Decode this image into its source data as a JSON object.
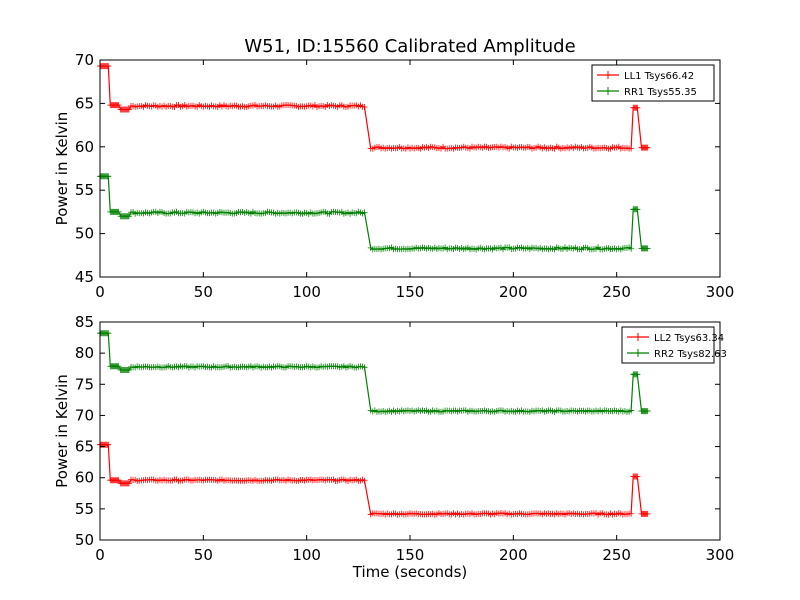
{
  "figure_title": "W51, ID:15560 Calibrated Amplitude",
  "chart_data": [
    {
      "type": "line",
      "title": "W51, ID:15560 Calibrated Amplitude",
      "xlabel": "",
      "ylabel": "Power in Kelvin",
      "xlim": [
        0,
        300
      ],
      "ylim": [
        45,
        70
      ],
      "xticks": [
        "0",
        "50",
        "100",
        "150",
        "200",
        "250",
        "300"
      ],
      "yticks": [
        "45",
        "50",
        "55",
        "60",
        "65",
        "70"
      ],
      "grid": false,
      "legend_position": "top-right",
      "series": [
        {
          "name": "LL1 Tsys66.42",
          "color": "#ff0000",
          "segments": [
            {
              "x_start": 0,
              "x_end": 4,
              "value": 69.3
            },
            {
              "x_start": 5,
              "x_end": 9,
              "value": 64.8
            },
            {
              "x_start": 10,
              "x_end": 14,
              "value": 64.3
            },
            {
              "x_start": 15,
              "x_end": 128,
              "value": 64.7
            },
            {
              "x_start": 131,
              "x_end": 257,
              "value": 59.9
            },
            {
              "x_start": 258,
              "x_end": 260,
              "value": 64.5
            },
            {
              "x_start": 262,
              "x_end": 265,
              "value": 59.9
            }
          ]
        },
        {
          "name": "RR1 Tsys55.35",
          "color": "#008000",
          "segments": [
            {
              "x_start": 0,
              "x_end": 4,
              "value": 56.6
            },
            {
              "x_start": 5,
              "x_end": 9,
              "value": 52.5
            },
            {
              "x_start": 10,
              "x_end": 14,
              "value": 52.0
            },
            {
              "x_start": 15,
              "x_end": 128,
              "value": 52.4
            },
            {
              "x_start": 131,
              "x_end": 257,
              "value": 48.3
            },
            {
              "x_start": 258,
              "x_end": 260,
              "value": 52.8
            },
            {
              "x_start": 262,
              "x_end": 265,
              "value": 48.3
            }
          ]
        }
      ]
    },
    {
      "type": "line",
      "title": "",
      "xlabel": "Time (seconds)",
      "ylabel": "Power in Kelvin",
      "xlim": [
        0,
        300
      ],
      "ylim": [
        50,
        85
      ],
      "xticks": [
        "0",
        "50",
        "100",
        "150",
        "200",
        "250",
        "300"
      ],
      "yticks": [
        "50",
        "55",
        "60",
        "65",
        "70",
        "75",
        "80",
        "85"
      ],
      "grid": false,
      "legend_position": "top-right",
      "series": [
        {
          "name": "LL2 Tsys63.34",
          "color": "#ff0000",
          "segments": [
            {
              "x_start": 0,
              "x_end": 4,
              "value": 65.3
            },
            {
              "x_start": 5,
              "x_end": 9,
              "value": 59.6
            },
            {
              "x_start": 10,
              "x_end": 14,
              "value": 59.1
            },
            {
              "x_start": 15,
              "x_end": 128,
              "value": 59.6
            },
            {
              "x_start": 131,
              "x_end": 257,
              "value": 54.2
            },
            {
              "x_start": 258,
              "x_end": 260,
              "value": 60.2
            },
            {
              "x_start": 262,
              "x_end": 265,
              "value": 54.2
            }
          ]
        },
        {
          "name": "RR2 Tsys82.63",
          "color": "#008000",
          "segments": [
            {
              "x_start": 0,
              "x_end": 4,
              "value": 83.2
            },
            {
              "x_start": 5,
              "x_end": 9,
              "value": 77.9
            },
            {
              "x_start": 10,
              "x_end": 14,
              "value": 77.3
            },
            {
              "x_start": 15,
              "x_end": 128,
              "value": 77.8
            },
            {
              "x_start": 131,
              "x_end": 257,
              "value": 70.7
            },
            {
              "x_start": 258,
              "x_end": 260,
              "value": 76.6
            },
            {
              "x_start": 262,
              "x_end": 265,
              "value": 70.7
            }
          ]
        }
      ]
    }
  ]
}
